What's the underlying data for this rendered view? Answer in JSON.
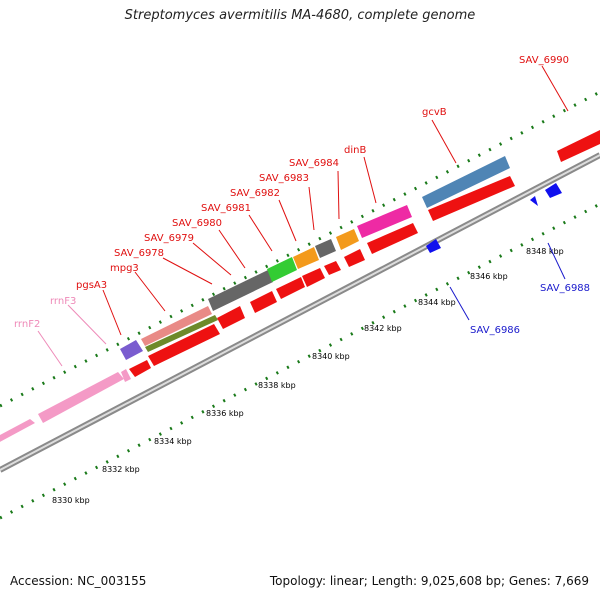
{
  "header": {
    "title": "Streptomyces avermitilis MA-4680, complete genome"
  },
  "footer": {
    "accession": "Accession: NC_003155",
    "summary": "Topology: linear; Length: 9,025,608 bp; Genes: 7,669"
  },
  "scale": {
    "tick_labels": [
      "8330 kbp",
      "8332 kbp",
      "8334 kbp",
      "8336 kbp",
      "8338 kbp",
      "8340 kbp",
      "8342 kbp",
      "8344 kbp",
      "8346 kbp",
      "8348 kbp"
    ]
  },
  "genes": {
    "forward_labels": [
      "rrnF2",
      "rrnF3",
      "pgsA3",
      "mpg3",
      "SAV_6978",
      "SAV_6979",
      "SAV_6980",
      "SAV_6981",
      "SAV_6982",
      "SAV_6983",
      "SAV_6984",
      "dinB",
      "gcvB",
      "SAV_6990"
    ],
    "reverse_labels": [
      "SAV_6986",
      "SAV_6988"
    ]
  },
  "colors": {
    "forward_label": "#e01010",
    "rrn_label": "#ee8ab8",
    "reverse_label": "#1a1acc",
    "cds": "#ee1111",
    "rrna": "#f49ac6",
    "gene_blue": "#4f85b5",
    "gene_gray": "#666666",
    "gene_green": "#33cc33",
    "gene_orange": "#f39a1c",
    "gene_magenta": "#ee2aa4",
    "gene_purple": "#7a5ccf",
    "gene_olive": "#6d8a2a",
    "gene_salmon": "#e98a86",
    "reverse_cds": "#1010ee",
    "backbone": "#8a8a8a",
    "tick": "#1a7a1a"
  }
}
